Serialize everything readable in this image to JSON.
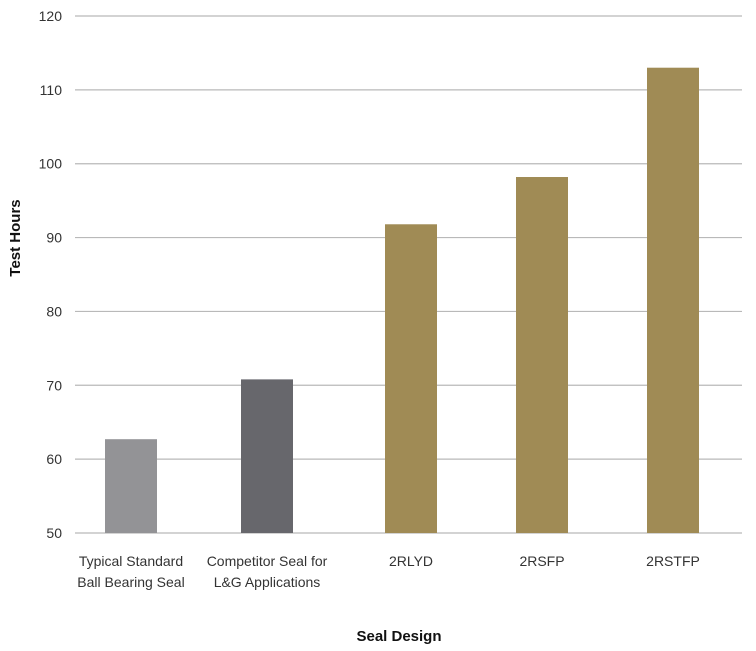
{
  "chart_data": {
    "type": "bar",
    "title": "",
    "xlabel": "Seal Design",
    "ylabel": "Test Hours",
    "ylim": [
      50,
      120
    ],
    "yticks": [
      50,
      60,
      70,
      80,
      90,
      100,
      110,
      120
    ],
    "grid": true,
    "categories": [
      [
        "Typical Standard",
        "Ball Bearing Seal"
      ],
      [
        "Competitor Seal for",
        "L&G Applications"
      ],
      [
        "2RLYD"
      ],
      [
        "2RSFP"
      ],
      [
        "2RSTFP"
      ]
    ],
    "values": [
      62.7,
      70.8,
      91.8,
      98.2,
      113.0
    ],
    "colors": [
      "#939396",
      "#67676c",
      "#a08b55",
      "#a08b55",
      "#a08b55"
    ]
  }
}
